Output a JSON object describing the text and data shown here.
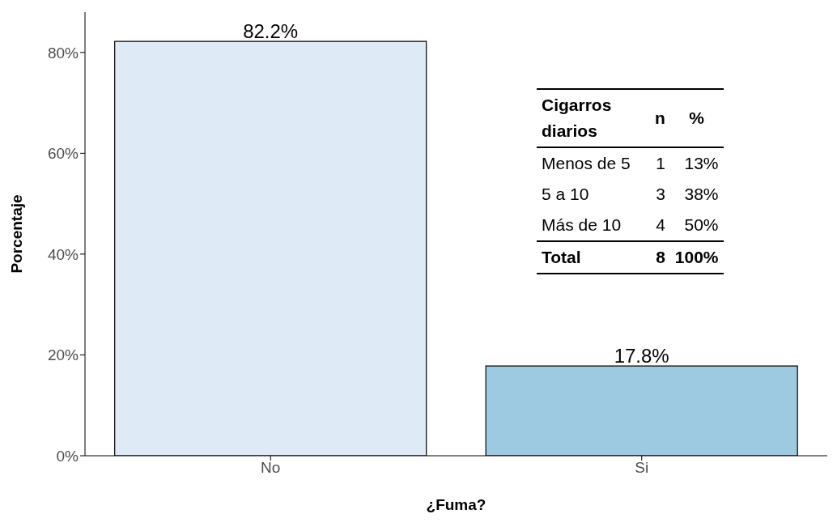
{
  "chart_data": {
    "type": "bar",
    "xlabel": "¿Fuma?",
    "ylabel": "Porcentaje",
    "categories": [
      "No",
      "Si"
    ],
    "values": [
      82.2,
      17.8
    ],
    "colors": [
      "#deebf7",
      "#9ecae1"
    ],
    "value_labels": [
      "82.2%",
      "17.8%"
    ],
    "ylim": [
      0,
      88
    ],
    "yticks": [
      {
        "value": 0,
        "label": "0%"
      },
      {
        "value": 20,
        "label": "20%"
      },
      {
        "value": 40,
        "label": "40%"
      },
      {
        "value": 60,
        "label": "60%"
      },
      {
        "value": 80,
        "label": "80%"
      }
    ],
    "grid": false,
    "annotations": [
      "Cigarros diarios",
      "n",
      "%",
      "Menos de 5",
      "1",
      "13%",
      "5 a 10",
      "3",
      "38%",
      "Más de 10",
      "4",
      "50%",
      "Total",
      "8",
      "100%"
    ]
  }
}
